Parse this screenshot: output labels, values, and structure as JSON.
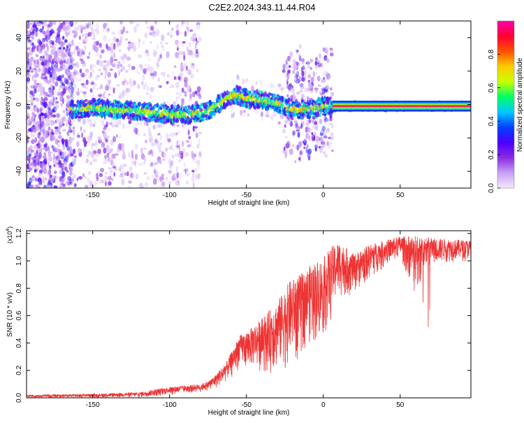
{
  "title": "C2E2.2024.343.11.44.R04",
  "chart_data": [
    {
      "type": "heatmap",
      "xlabel": "Height of straight line (km)",
      "ylabel": "Frequency (Hz)",
      "xlim": [
        -193,
        96
      ],
      "ylim": [
        -50,
        50
      ],
      "xticks": [
        -150,
        -100,
        -50,
        0,
        50
      ],
      "yticks": [
        -40,
        -20,
        0,
        20,
        40
      ],
      "colorbar": {
        "label": "Normalized spectral amplitude",
        "range": [
          0,
          1
        ],
        "ticks": [
          0.0,
          0.2,
          0.4,
          0.6,
          0.8
        ],
        "tick_labels": [
          "0.0",
          "0.2",
          "0.4",
          "0.6",
          "0.8"
        ],
        "colors": [
          "#f2e8ff",
          "#c9a0f5",
          "#8a2be2",
          "#4b00ff",
          "#0040ff",
          "#00c8ff",
          "#00ff66",
          "#c8ff00",
          "#ffcc00",
          "#ff5000",
          "#ff0033",
          "#ff00aa"
        ]
      },
      "ridge": {
        "x": [
          -163,
          -150,
          -135,
          -120,
          -110,
          -100,
          -92,
          -86,
          -80,
          -76,
          -70,
          -64,
          -60,
          -56,
          -52,
          -48,
          -42,
          -36,
          -30,
          -26,
          -22,
          -16,
          -10,
          -4,
          0,
          4,
          8,
          12,
          20,
          40,
          60,
          80,
          96
        ],
        "y": [
          -3,
          -2,
          -3,
          -4,
          -5,
          -6,
          -6,
          -6,
          -5,
          -4,
          -1,
          3,
          5,
          6,
          4,
          3,
          3,
          2,
          1,
          -1,
          -2,
          -3,
          -3,
          -2,
          -1,
          -1,
          -1,
          -1,
          -1,
          -1,
          -1,
          -1,
          -1
        ]
      }
    },
    {
      "type": "line",
      "xlabel": "Height of straight line (km)",
      "ylabel": "SNR (10 * v/v)",
      "y_multiplier": "(x10",
      "y_multiplier_exp": "4",
      "y_multiplier_close": ")",
      "xlim": [
        -193,
        96
      ],
      "ylim": [
        0,
        1.22
      ],
      "xticks": [
        -150,
        -100,
        -50,
        0,
        50
      ],
      "yticks": [
        0.0,
        0.2,
        0.4,
        0.6,
        0.8,
        1.0,
        1.2
      ],
      "ytick_labels": [
        "0.0",
        "0.2",
        "0.4",
        "0.6",
        "0.8",
        "1.0",
        "1.2"
      ],
      "color": "#ee3333",
      "envelope": {
        "x": [
          -193,
          -150,
          -120,
          -100,
          -90,
          -80,
          -75,
          -70,
          -62,
          -55,
          -48,
          -40,
          -30,
          -22,
          -15,
          -10,
          -5,
          0,
          5,
          10,
          20,
          30,
          40,
          50,
          60,
          70,
          80,
          96
        ],
        "upper": [
          0.02,
          0.03,
          0.04,
          0.08,
          0.09,
          0.1,
          0.12,
          0.17,
          0.28,
          0.45,
          0.5,
          0.58,
          0.7,
          0.85,
          0.9,
          0.95,
          1.0,
          1.02,
          1.1,
          1.14,
          1.05,
          1.12,
          1.15,
          1.18,
          1.18,
          1.17,
          1.16,
          1.15
        ],
        "lower": [
          0.0,
          0.0,
          0.0,
          0.02,
          0.03,
          0.04,
          0.05,
          0.06,
          0.12,
          0.2,
          0.2,
          0.18,
          0.15,
          0.22,
          0.3,
          0.38,
          0.35,
          0.4,
          0.55,
          0.7,
          0.75,
          0.85,
          0.95,
          1.0,
          0.75,
          0.95,
          0.98,
          1.0
        ]
      }
    }
  ]
}
